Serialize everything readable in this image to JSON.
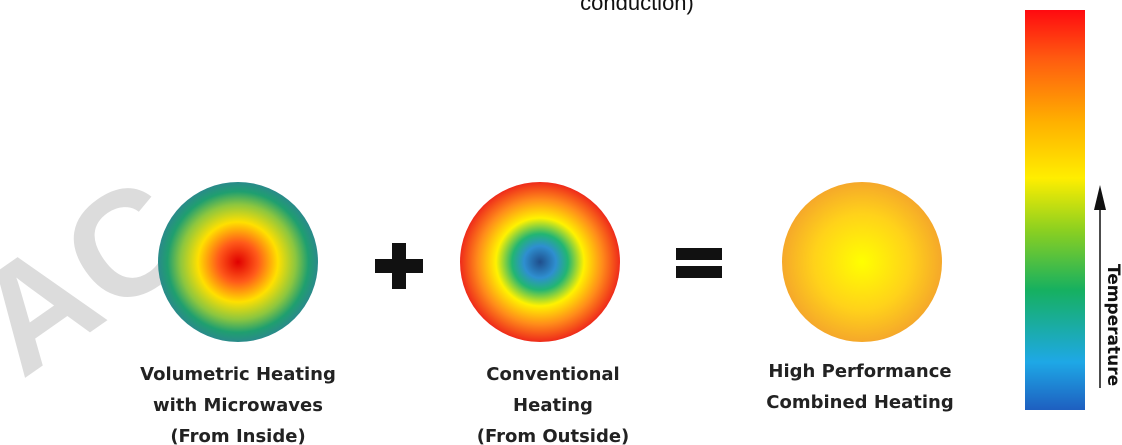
{
  "header": {
    "fragment": "conduction)"
  },
  "watermark": "AC",
  "items": [
    {
      "lines": [
        "Volumetric Heating",
        "with Microwaves",
        "(From Inside)"
      ]
    },
    {
      "lines": [
        "Conventional",
        "Heating",
        "(From Outside)"
      ]
    },
    {
      "lines": [
        "High Performance",
        "Combined Heating"
      ]
    }
  ],
  "scale": {
    "label": "Temperature"
  }
}
